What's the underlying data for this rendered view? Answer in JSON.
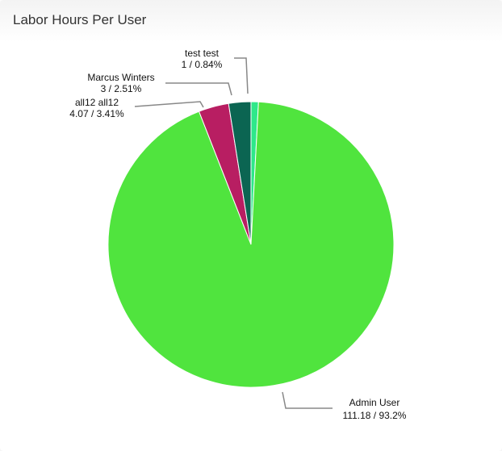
{
  "title": "Labor Hours Per User",
  "chart_data": {
    "type": "pie",
    "title": "Labor Hours Per User",
    "slices": [
      {
        "name": "test test",
        "value": 1,
        "percent": "0.84%",
        "color": "#2ee88a"
      },
      {
        "name": "Admin User",
        "value": 111.18,
        "percent": "93.2%",
        "color": "#50e43e"
      },
      {
        "name": "all12 all12",
        "value": 4.07,
        "percent": "3.41%",
        "color": "#b81e62"
      },
      {
        "name": "Marcus Winters",
        "value": 3,
        "percent": "2.51%",
        "color": "#0b6552"
      }
    ]
  }
}
